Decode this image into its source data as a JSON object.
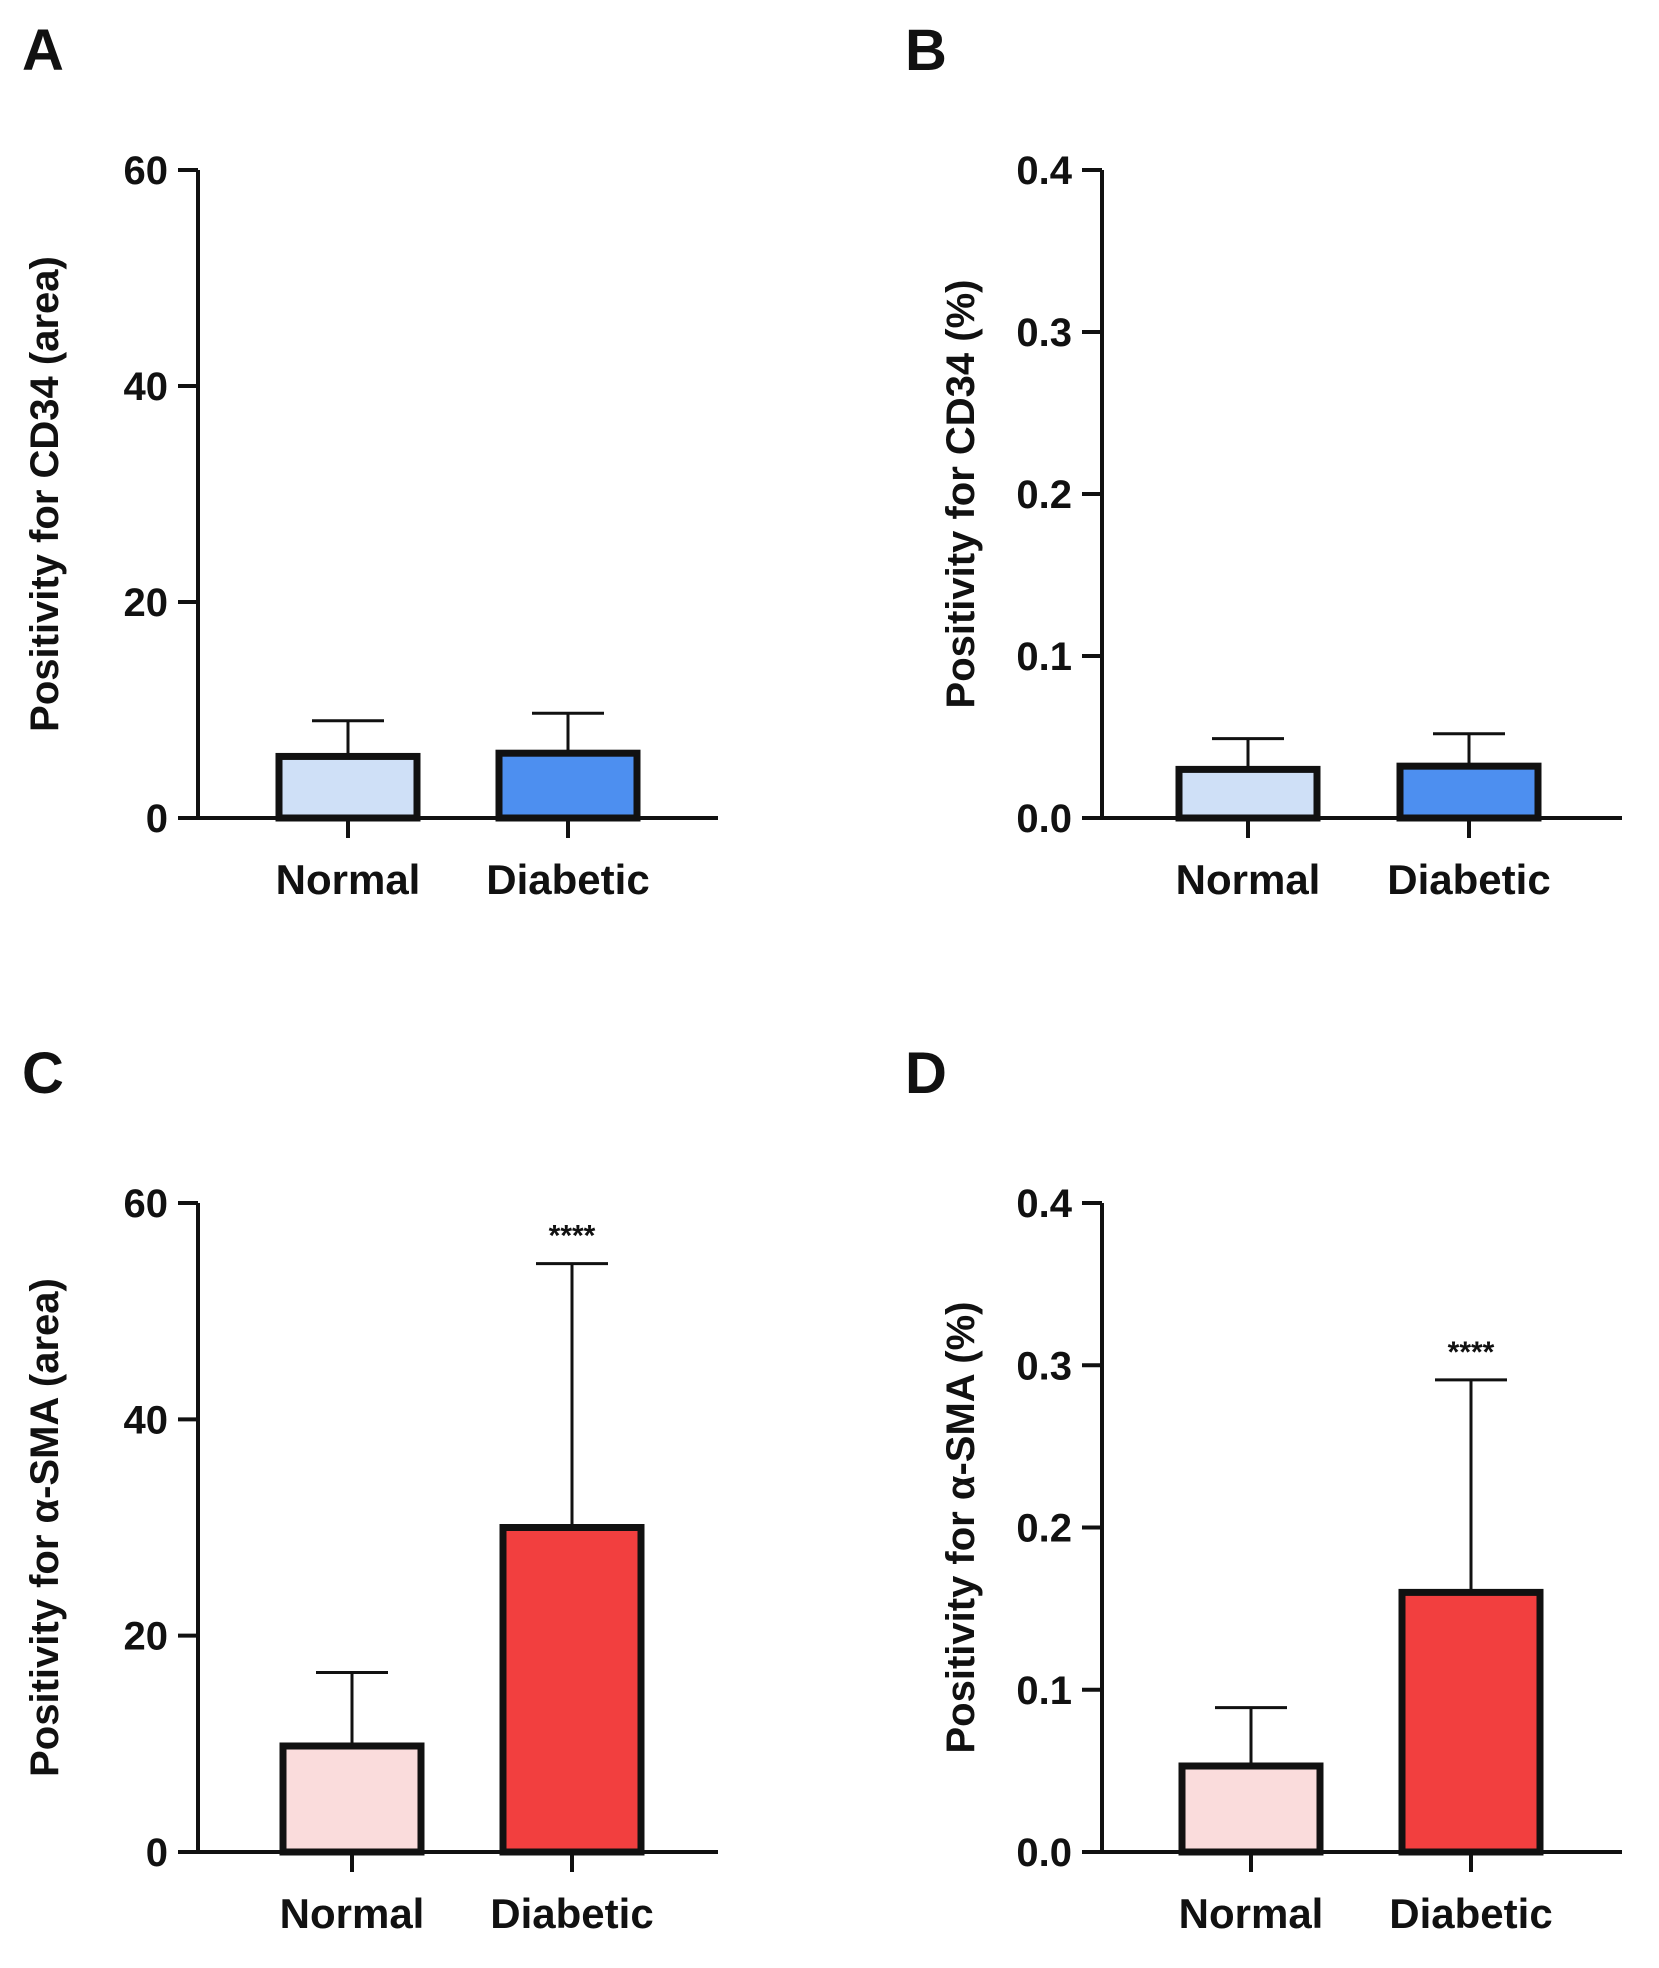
{
  "chart_data": [
    {
      "panel": "A",
      "type": "bar",
      "categories": [
        "Normal",
        "Diabetic"
      ],
      "values": [
        5.7,
        6.0
      ],
      "errors": [
        3.3,
        3.7
      ],
      "colors": [
        "#cfe0f7",
        "#4d8ff0"
      ],
      "ylim": [
        0,
        60
      ],
      "yticks": [
        "0",
        "20",
        "40",
        "60"
      ],
      "ylabel": "Positivity for CD34 (area)",
      "significance": ""
    },
    {
      "panel": "B",
      "type": "bar",
      "categories": [
        "Normal",
        "Diabetic"
      ],
      "values": [
        0.03,
        0.032
      ],
      "errors": [
        0.019,
        0.02
      ],
      "colors": [
        "#cfe0f7",
        "#4d8ff0"
      ],
      "ylim": [
        0,
        0.4
      ],
      "yticks": [
        "0.0",
        "0.1",
        "0.2",
        "0.3",
        "0.4"
      ],
      "ylabel": "Positivity for CD34 (%)",
      "significance": ""
    },
    {
      "panel": "C",
      "type": "bar",
      "categories": [
        "Normal",
        "Diabetic"
      ],
      "values": [
        9.8,
        30.0
      ],
      "errors": [
        6.8,
        24.4
      ],
      "colors": [
        "#fadcdc",
        "#f23f3f"
      ],
      "ylim": [
        0,
        60
      ],
      "yticks": [
        "0",
        "20",
        "40",
        "60"
      ],
      "ylabel": "Positivity for α-SMA (area)",
      "significance": "****"
    },
    {
      "panel": "D",
      "type": "bar",
      "categories": [
        "Normal",
        "Diabetic"
      ],
      "values": [
        0.053,
        0.16
      ],
      "errors": [
        0.036,
        0.131
      ],
      "colors": [
        "#fadcdc",
        "#f23f3f"
      ],
      "ylim": [
        0,
        0.4
      ],
      "yticks": [
        "0.0",
        "0.1",
        "0.2",
        "0.3",
        "0.4"
      ],
      "ylabel": "Positivity for α-SMA (%)",
      "significance": "****"
    }
  ]
}
